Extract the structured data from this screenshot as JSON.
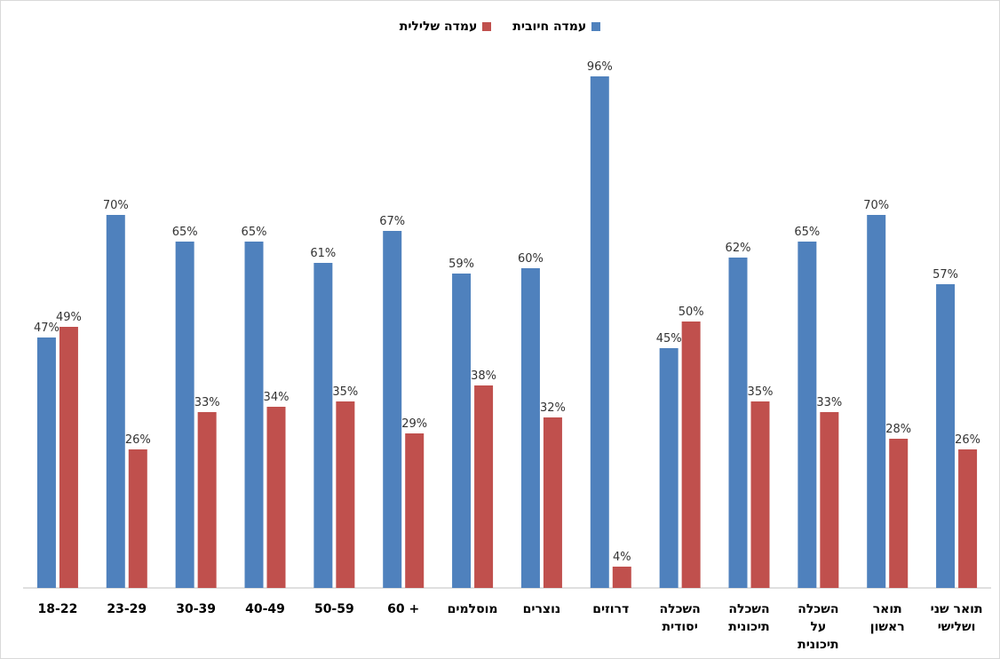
{
  "chart_data": {
    "type": "bar",
    "categories": [
      [
        "18-22"
      ],
      [
        "23-29"
      ],
      [
        "30-39"
      ],
      [
        "40-49"
      ],
      [
        "50-59"
      ],
      [
        "+ 60"
      ],
      [
        "מוסלמים"
      ],
      [
        "נוצרים"
      ],
      [
        "דרוזים"
      ],
      [
        "השכלה",
        "יסודית"
      ],
      [
        "השכלה",
        "תיכונית"
      ],
      [
        "השכלה",
        "על",
        "תיכונית"
      ],
      [
        "תואר",
        "ראשון"
      ],
      [
        "תואר שני",
        "ושלישי"
      ]
    ],
    "series": [
      {
        "name": "עמדה חיובית",
        "color": "#4f81bd",
        "values": [
          47,
          70,
          65,
          65,
          61,
          67,
          59,
          60,
          96,
          45,
          62,
          65,
          70,
          57
        ]
      },
      {
        "name": "עמדה שלילית",
        "color": "#c0504d",
        "values": [
          49,
          26,
          33,
          34,
          35,
          29,
          38,
          32,
          4,
          50,
          35,
          33,
          28,
          26
        ]
      }
    ],
    "value_suffix": "%",
    "ylim": [
      0,
      100
    ],
    "grid": false,
    "legend_position": "top-center"
  }
}
